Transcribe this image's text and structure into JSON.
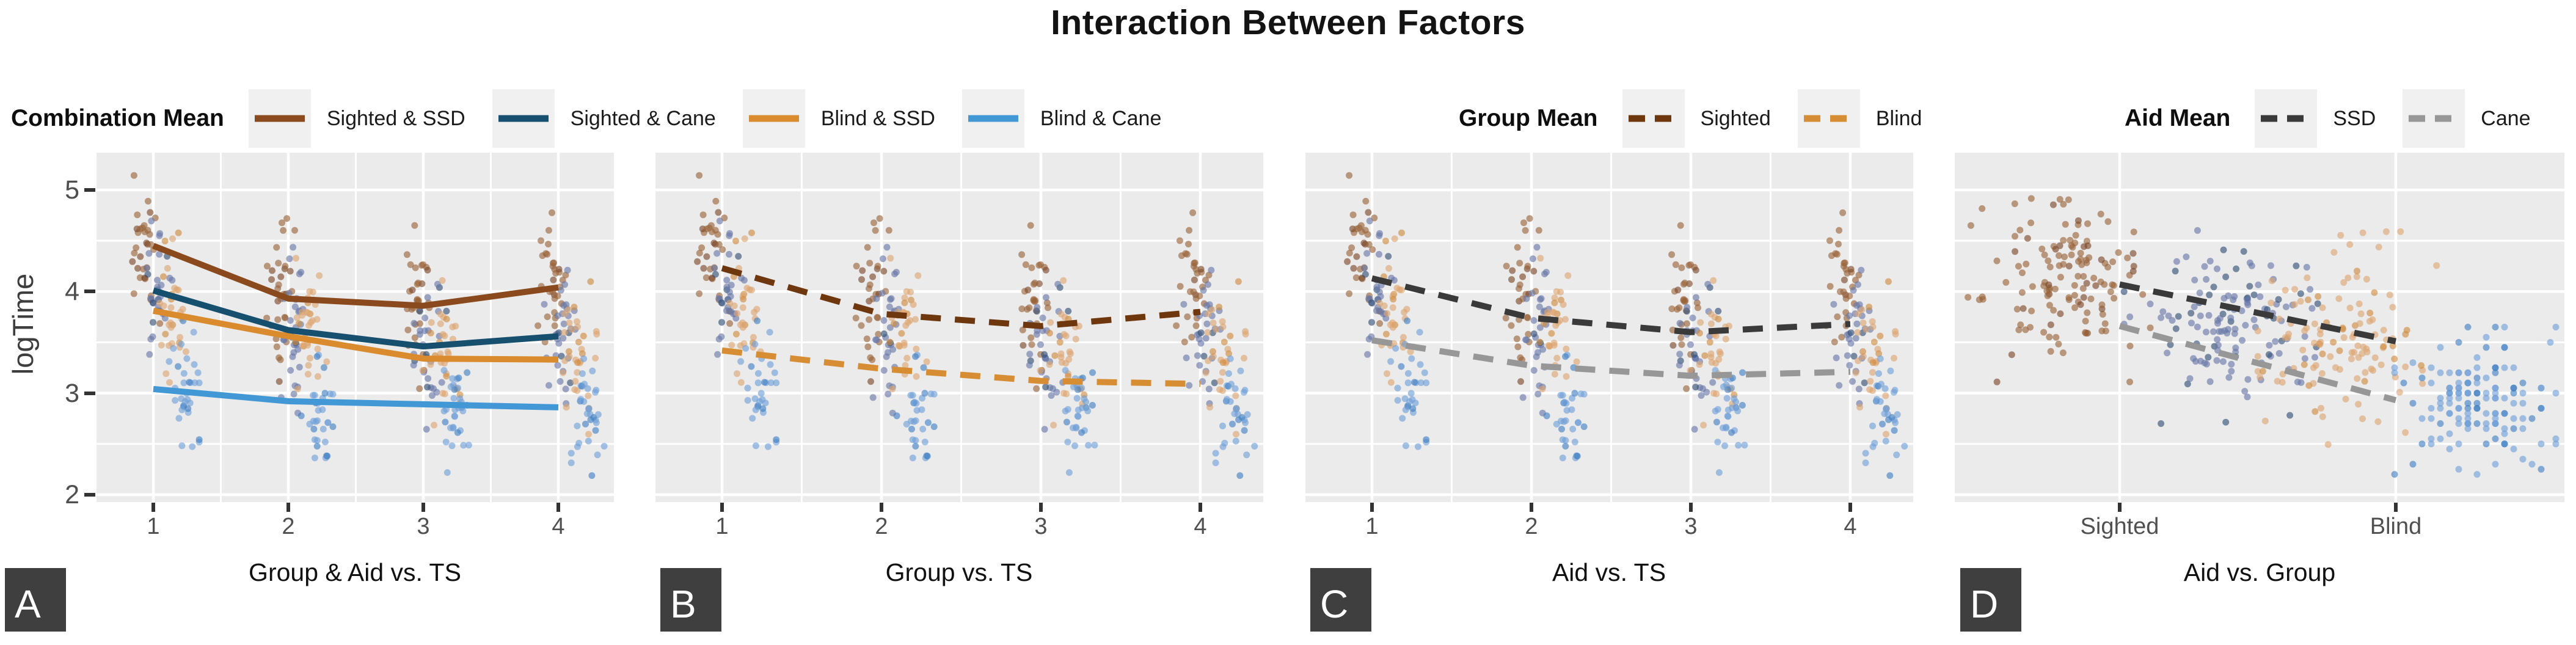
{
  "title": "Interaction Between Factors",
  "axes": {
    "y_label": "logTime",
    "y_tick_labels": [
      "5",
      "4",
      "3",
      "2"
    ],
    "y_tick_values": [
      5,
      4,
      3,
      2
    ]
  },
  "legends": {
    "combination": {
      "title": "Combination Mean",
      "items": [
        {
          "label": "Sighted & SSD",
          "color": "#8a4a1d",
          "dashed": false
        },
        {
          "label": "Sighted & Cane",
          "color": "#17506e",
          "dashed": false
        },
        {
          "label": "Blind & SSD",
          "color": "#d98b2e",
          "dashed": false
        },
        {
          "label": "Blind & Cane",
          "color": "#4298d5",
          "dashed": false
        }
      ]
    },
    "group": {
      "title": "Group Mean",
      "items": [
        {
          "label": "Sighted",
          "color": "#6f370e",
          "dashed": true
        },
        {
          "label": "Blind",
          "color": "#d68d33",
          "dashed": true
        }
      ]
    },
    "aid": {
      "title": "Aid Mean",
      "items": [
        {
          "label": "SSD",
          "color": "#3a3a3a",
          "dashed": true
        },
        {
          "label": "Cane",
          "color": "#979797",
          "dashed": true
        }
      ]
    }
  },
  "panels": {
    "a": {
      "letter": "A",
      "x_label": "Group & Aid vs. TS",
      "x_tick_labels": [
        "1",
        "2",
        "3",
        "4"
      ]
    },
    "b": {
      "letter": "B",
      "x_label": "Group vs. TS",
      "x_tick_labels": [
        "1",
        "2",
        "3",
        "4"
      ]
    },
    "c": {
      "letter": "C",
      "x_label": "Aid vs. TS",
      "x_tick_labels": [
        "1",
        "2",
        "3",
        "4"
      ]
    },
    "d": {
      "letter": "D",
      "x_label": "Aid vs. Group",
      "x_tick_labels": [
        "Sighted",
        "Blind"
      ]
    }
  },
  "chart_data": {
    "type": "scatter",
    "title": "Interaction Between Factors",
    "ylabel": "logTime",
    "ylim": [
      1.93,
      5.37
    ],
    "y_major_gridlines": [
      2,
      3,
      4,
      5
    ],
    "y_minor_gridlines": [
      2.5,
      3.5,
      4.5
    ],
    "ts_categories": [
      1,
      2,
      3,
      4
    ],
    "group_categories": [
      "Sighted",
      "Blind"
    ],
    "combo_series": [
      {
        "key": "sighted_ssd",
        "name": "Sighted & SSD",
        "line_color": "#8a4a1d",
        "point_color": "#9a6238",
        "point_color_dark": "#7a4526",
        "values": [
          4.45,
          3.93,
          3.86,
          4.04
        ]
      },
      {
        "key": "sighted_cane",
        "name": "Sighted & Cane",
        "line_color": "#17506e",
        "point_color": "#6878a8",
        "point_color_dark": "#2f4e74",
        "values": [
          4.01,
          3.62,
          3.46,
          3.56
        ]
      },
      {
        "key": "blind_ssd",
        "name": "Blind & SSD",
        "line_color": "#d98b2e",
        "point_color": "#dda470",
        "point_color_dark": "#d08a3f",
        "values": [
          3.81,
          3.56,
          3.34,
          3.33
        ]
      },
      {
        "key": "blind_cane",
        "name": "Blind & Cane",
        "line_color": "#4298d5",
        "point_color": "#6fa0d8",
        "point_color_dark": "#3f7fc4",
        "values": [
          3.04,
          2.92,
          2.89,
          2.86
        ]
      }
    ],
    "group_mean_series": [
      {
        "key": "sighted",
        "name": "Sighted",
        "line_color": "#6f370e",
        "values": [
          4.23,
          3.78,
          3.66,
          3.8
        ]
      },
      {
        "key": "blind",
        "name": "Blind",
        "line_color": "#d68d33",
        "values": [
          3.42,
          3.24,
          3.12,
          3.09
        ]
      }
    ],
    "aid_mean_series": [
      {
        "key": "ssd",
        "name": "SSD",
        "line_color": "#3a3a3a",
        "values": [
          4.13,
          3.74,
          3.6,
          3.68
        ]
      },
      {
        "key": "cane",
        "name": "Cane",
        "line_color": "#979797",
        "values": [
          3.52,
          3.27,
          3.17,
          3.21
        ]
      }
    ],
    "aid_by_group_series": [
      {
        "key": "ssd",
        "name": "SSD",
        "line_color": "#3a3a3a",
        "values": [
          4.07,
          3.51
        ]
      },
      {
        "key": "cane",
        "name": "Cane",
        "line_color": "#979797",
        "values": [
          3.66,
          2.93
        ]
      }
    ]
  }
}
